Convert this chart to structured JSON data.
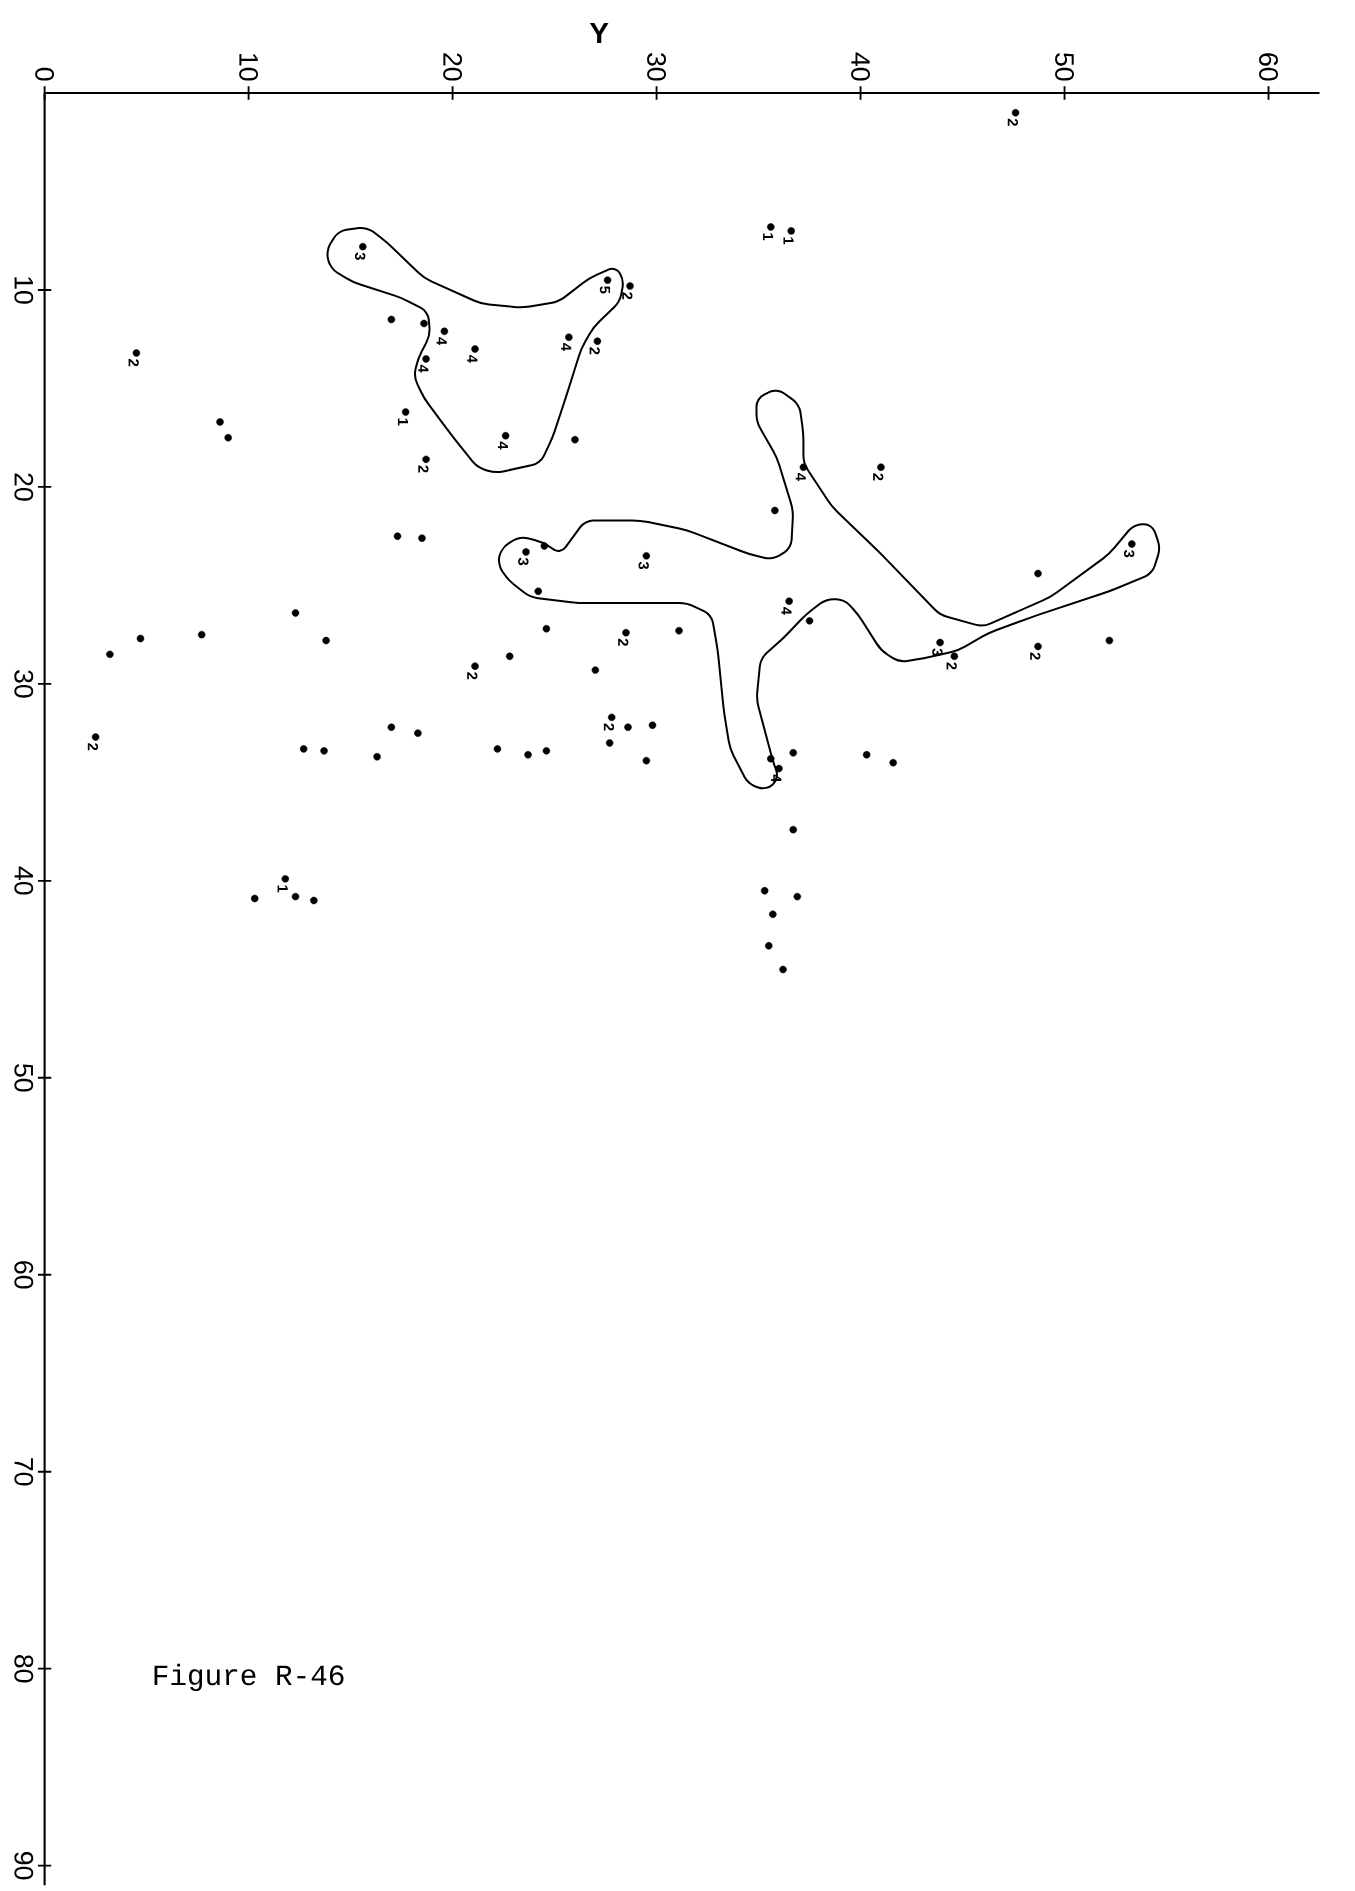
{
  "chart_data": {
    "type": "scatter",
    "xlabel": "Y",
    "xlim": [
      0,
      62.5
    ],
    "ylim": [
      91,
      0
    ],
    "xticks": [
      0,
      10,
      20,
      30,
      40,
      50,
      60
    ],
    "yticks": [
      10,
      20,
      30,
      40,
      50,
      60,
      70,
      80,
      90
    ],
    "annotations": [
      "Figure R-46",
      {
        "text": "2",
        "x": 47.6,
        "y": 1.0
      },
      {
        "text": "1",
        "x": 35.6,
        "y": 6.8
      },
      {
        "text": "1",
        "x": 36.6,
        "y": 7.0
      },
      {
        "text": "3",
        "x": 15.6,
        "y": 7.8
      },
      {
        "text": "5",
        "x": 27.6,
        "y": 9.5
      },
      {
        "text": "2",
        "x": 28.7,
        "y": 9.8
      },
      {
        "text": "4",
        "x": 19.6,
        "y": 12.1
      },
      {
        "text": "4",
        "x": 18.7,
        "y": 13.5
      },
      {
        "text": "4",
        "x": 21.1,
        "y": 13.0
      },
      {
        "text": "4",
        "x": 25.7,
        "y": 12.4
      },
      {
        "text": "2",
        "x": 27.1,
        "y": 12.6
      },
      {
        "text": "2",
        "x": 4.5,
        "y": 13.2
      },
      {
        "text": "1",
        "x": 17.7,
        "y": 16.2
      },
      {
        "text": "4",
        "x": 22.6,
        "y": 17.4
      },
      {
        "text": "2",
        "x": 18.7,
        "y": 18.6
      },
      {
        "text": "3",
        "x": 23.6,
        "y": 23.3
      },
      {
        "text": "3",
        "x": 29.5,
        "y": 23.5
      },
      {
        "text": "2",
        "x": 28.5,
        "y": 27.4
      },
      {
        "text": "2",
        "x": 21.1,
        "y": 29.1
      },
      {
        "text": "2",
        "x": 2.5,
        "y": 32.7
      },
      {
        "text": "2",
        "x": 27.8,
        "y": 31.7
      },
      {
        "text": "1",
        "x": 11.8,
        "y": 39.9
      },
      {
        "text": "4",
        "x": 37.2,
        "y": 19.0
      },
      {
        "text": "2",
        "x": 41.0,
        "y": 19.0
      },
      {
        "text": "3",
        "x": 53.3,
        "y": 22.9
      },
      {
        "text": "4",
        "x": 36.5,
        "y": 25.8
      },
      {
        "text": "3",
        "x": 43.9,
        "y": 27.9
      },
      {
        "text": "2",
        "x": 44.6,
        "y": 28.6
      },
      {
        "text": "2",
        "x": 48.7,
        "y": 28.1
      },
      {
        "text": "4",
        "x": 36.0,
        "y": 34.3
      }
    ],
    "series": [
      {
        "color": "#000000",
        "x": [
          47.6,
          35.6,
          36.6,
          15.6,
          27.6,
          28.7,
          17.0,
          18.6,
          19.6,
          18.7,
          21.1,
          25.7,
          27.1,
          4.5,
          8.6,
          9.0,
          17.7,
          22.6,
          26.0,
          18.7,
          17.3,
          18.5,
          24.5,
          23.6,
          29.5,
          24.2,
          12.3,
          24.6,
          31.1,
          28.5,
          4.7,
          7.7,
          13.8,
          3.2,
          22.8,
          21.1,
          27.0,
          2.5,
          17.0,
          18.3,
          12.7,
          13.7,
          16.3,
          22.2,
          23.7,
          24.6,
          27.8,
          28.6,
          29.8,
          27.7,
          29.5,
          10.3,
          11.8,
          12.3,
          13.2,
          37.2,
          41.0,
          35.8,
          53.3,
          48.7,
          36.5,
          37.5,
          43.9,
          44.6,
          48.7,
          52.2,
          35.6,
          36.0,
          36.7,
          40.3,
          41.6,
          36.7,
          35.3,
          36.9,
          35.7,
          35.5,
          36.2
        ],
        "values": [
          1.0,
          6.8,
          7.0,
          7.8,
          9.5,
          9.8,
          11.5,
          11.7,
          12.1,
          13.5,
          13.0,
          12.4,
          12.6,
          13.2,
          16.7,
          17.5,
          16.2,
          17.4,
          17.6,
          18.6,
          22.5,
          22.6,
          23.0,
          23.3,
          23.5,
          25.3,
          26.4,
          27.2,
          27.3,
          27.4,
          27.7,
          27.5,
          27.8,
          28.5,
          28.6,
          29.1,
          29.3,
          32.7,
          32.2,
          32.5,
          33.3,
          33.4,
          33.7,
          33.3,
          33.6,
          33.4,
          31.7,
          32.2,
          32.1,
          33.0,
          33.9,
          40.9,
          39.9,
          40.8,
          41.0,
          19.0,
          19.0,
          21.2,
          22.9,
          24.4,
          25.8,
          26.8,
          27.9,
          28.6,
          28.1,
          27.8,
          33.8,
          34.3,
          33.5,
          33.6,
          34.0,
          37.4,
          40.5,
          40.8,
          41.7,
          43.3,
          44.5
        ]
      }
    ]
  }
}
